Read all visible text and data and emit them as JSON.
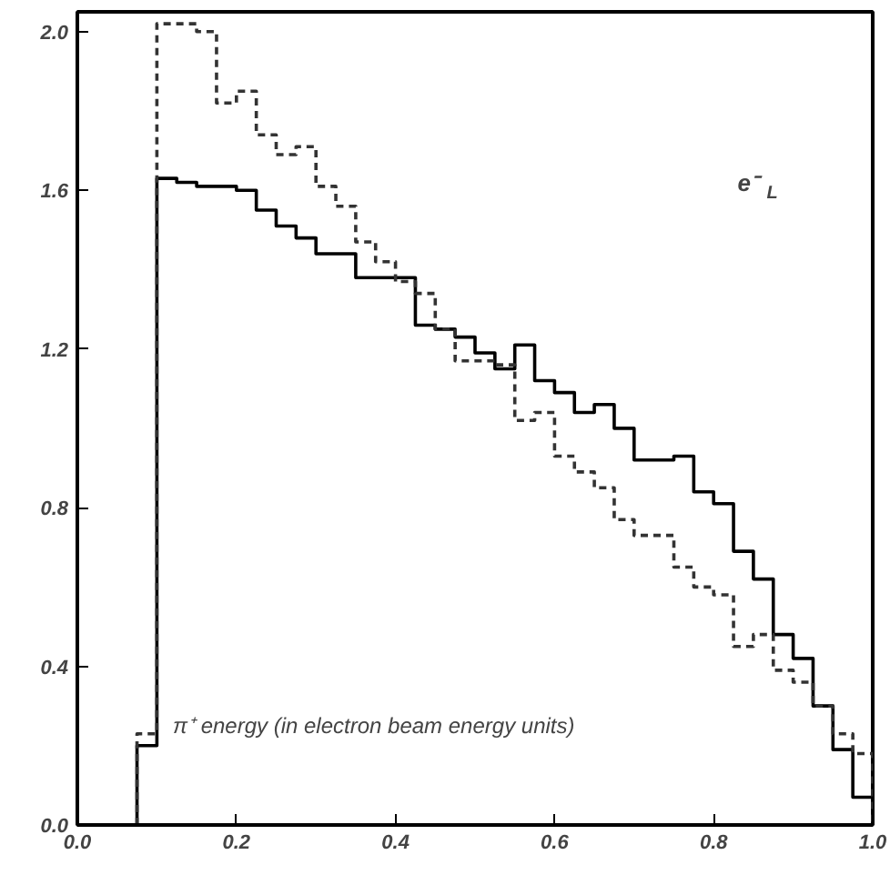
{
  "chart_data": {
    "type": "histogram",
    "xlabel": "π⁺ energy (in electron beam energy units)",
    "annotations": [
      "e⁻$_{L}$"
    ],
    "bins": [
      0.075,
      0.1,
      0.125,
      0.15,
      0.175,
      0.2,
      0.225,
      0.25,
      0.275,
      0.3,
      0.325,
      0.35,
      0.375,
      0.4,
      0.425,
      0.45,
      0.475,
      0.5,
      0.525,
      0.55,
      0.575,
      0.6,
      0.625,
      0.65,
      0.675,
      0.7,
      0.725,
      0.75,
      0.775,
      0.8,
      0.825,
      0.85,
      0.875,
      0.9,
      0.925,
      0.95,
      0.975,
      1.0
    ],
    "series": [
      {
        "color": "#000000",
        "line_style": "solid",
        "values": [
          0.2,
          1.63,
          1.62,
          1.61,
          1.61,
          1.6,
          1.55,
          1.51,
          1.48,
          1.44,
          1.44,
          1.38,
          1.38,
          1.38,
          1.26,
          1.25,
          1.23,
          1.19,
          1.15,
          1.21,
          1.12,
          1.09,
          1.04,
          1.06,
          1.0,
          0.92,
          0.92,
          0.93,
          0.84,
          0.81,
          0.69,
          0.62,
          0.48,
          0.42,
          0.3,
          0.19,
          0.07
        ]
      },
      {
        "color": "#333333",
        "line_style": "dashed",
        "values": [
          0.23,
          2.02,
          2.02,
          2.0,
          1.82,
          1.85,
          1.74,
          1.69,
          1.71,
          1.61,
          1.56,
          1.47,
          1.42,
          1.37,
          1.34,
          1.25,
          1.17,
          1.17,
          1.16,
          1.02,
          1.04,
          0.93,
          0.89,
          0.85,
          0.77,
          0.73,
          0.73,
          0.65,
          0.6,
          0.58,
          0.45,
          0.48,
          0.39,
          0.36,
          0.3,
          0.23,
          0.18
        ]
      }
    ],
    "xlim": [
      0,
      1.0
    ],
    "ylim": [
      0,
      2.05
    ],
    "xticks": [
      {
        "value": 0,
        "label": "0.0"
      },
      0.2,
      0.4,
      0.6,
      0.8,
      {
        "value": 1,
        "label": "1.0"
      }
    ],
    "yticks": [
      {
        "value": 0,
        "label": "0.0"
      },
      0.4,
      0.8,
      1.2,
      1.6,
      {
        "value": 2,
        "label": "2.0"
      }
    ],
    "grid": false
  }
}
